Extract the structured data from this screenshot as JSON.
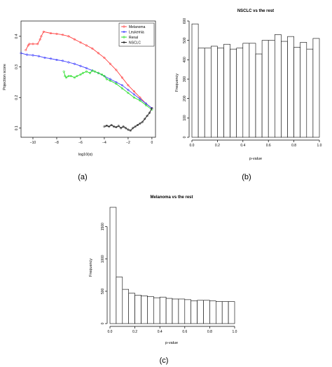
{
  "chart_data": [
    {
      "type": "line",
      "panel_label": "(a)",
      "title": "",
      "xlabel": "log10(α)",
      "ylabel": "Pojection score",
      "xlim": [
        -11,
        0.3
      ],
      "ylim": [
        0.07,
        0.45
      ],
      "xticks": [
        -10,
        -8,
        -6,
        -4,
        -2,
        0
      ],
      "xtick_labels": [
        "−10",
        "−8",
        "−6",
        "−4",
        "−2",
        "0"
      ],
      "yticks": [
        0.1,
        0.2,
        0.3,
        0.4
      ],
      "ytick_labels": [
        "0.1",
        "0.2",
        "0.3",
        "0.4"
      ],
      "legend": "top-right",
      "series": [
        {
          "name": "Melanoma",
          "color": "#ff4040",
          "x": [
            -10.6,
            -10.4,
            -10.3,
            -10.0,
            -9.6,
            -9.4,
            -9.3,
            -9.1,
            -8.5,
            -8.0,
            -7.5,
            -7.0,
            -6.5,
            -6.0,
            -5.5,
            -5.0,
            -4.5,
            -4.0,
            -3.5,
            -3.0,
            -2.5,
            -2.0,
            -1.5,
            -1.0,
            -0.5,
            0.0
          ],
          "y": [
            0.355,
            0.37,
            0.375,
            0.375,
            0.375,
            0.39,
            0.4,
            0.415,
            0.41,
            0.408,
            0.405,
            0.4,
            0.39,
            0.38,
            0.37,
            0.36,
            0.345,
            0.33,
            0.31,
            0.29,
            0.265,
            0.24,
            0.22,
            0.2,
            0.18,
            0.165
          ]
        },
        {
          "name": "Leukemia",
          "color": "#3b3bff",
          "x": [
            -11.0,
            -10.5,
            -10.0,
            -9.5,
            -9.0,
            -8.5,
            -8.0,
            -7.5,
            -7.0,
            -6.5,
            -6.0,
            -5.5,
            -5.0,
            -4.5,
            -4.0,
            -3.5,
            -3.0,
            -2.5,
            -2.0,
            -1.5,
            -1.0,
            -0.5,
            0.0
          ],
          "y": [
            0.345,
            0.34,
            0.338,
            0.335,
            0.33,
            0.327,
            0.323,
            0.32,
            0.315,
            0.31,
            0.303,
            0.296,
            0.288,
            0.28,
            0.27,
            0.26,
            0.25,
            0.24,
            0.225,
            0.21,
            0.195,
            0.18,
            0.165
          ]
        },
        {
          "name": "Renal",
          "color": "#22dd22",
          "x": [
            -7.4,
            -7.3,
            -7.2,
            -7.0,
            -6.8,
            -6.5,
            -6.3,
            -6.0,
            -5.8,
            -5.5,
            -5.2,
            -5.0,
            -4.8,
            -4.5,
            -4.2,
            -4.0,
            -3.8,
            -3.5,
            -3.0,
            -2.5,
            -2.0,
            -1.5,
            -1.0,
            -0.5,
            0.0
          ],
          "y": [
            0.285,
            0.27,
            0.265,
            0.27,
            0.27,
            0.265,
            0.27,
            0.275,
            0.28,
            0.285,
            0.28,
            0.288,
            0.285,
            0.28,
            0.275,
            0.27,
            0.26,
            0.255,
            0.245,
            0.23,
            0.215,
            0.2,
            0.19,
            0.175,
            0.16
          ]
        },
        {
          "name": "NSCLC",
          "color": "#111111",
          "x": [
            -4.0,
            -3.8,
            -3.6,
            -3.4,
            -3.2,
            -3.0,
            -2.8,
            -2.6,
            -2.4,
            -2.2,
            -2.0,
            -1.8,
            -1.6,
            -1.4,
            -1.2,
            -1.0,
            -0.8,
            -0.6,
            -0.4,
            -0.2,
            0.0
          ],
          "y": [
            0.105,
            0.108,
            0.105,
            0.11,
            0.105,
            0.103,
            0.107,
            0.1,
            0.105,
            0.1,
            0.095,
            0.092,
            0.1,
            0.105,
            0.11,
            0.115,
            0.12,
            0.13,
            0.14,
            0.15,
            0.165
          ]
        }
      ]
    },
    {
      "type": "bar",
      "panel_label": "(b)",
      "title": "NSCLC vs the rest",
      "xlabel": "p-value",
      "ylabel": "Frequency",
      "xlim": [
        0,
        1
      ],
      "ylim": [
        0,
        600
      ],
      "xticks": [
        0,
        0.2,
        0.4,
        0.6,
        0.8,
        1.0
      ],
      "xtick_labels": [
        "0.0",
        "0.2",
        "0.4",
        "0.6",
        "0.8",
        "1.0"
      ],
      "yticks": [
        0,
        100,
        200,
        300,
        400,
        500,
        600
      ],
      "ytick_labels": [
        "0",
        "100",
        "200",
        "300",
        "400",
        "500",
        "600"
      ],
      "bin_width": 0.05,
      "values": [
        585,
        460,
        460,
        470,
        460,
        480,
        455,
        460,
        485,
        485,
        430,
        500,
        500,
        530,
        495,
        520,
        465,
        490,
        455,
        510
      ]
    },
    {
      "type": "bar",
      "panel_label": "(c)",
      "title": "Melanoma vs the rest",
      "xlabel": "p-value",
      "ylabel": "Frequency",
      "xlim": [
        0,
        1
      ],
      "ylim": [
        0,
        1800
      ],
      "xticks": [
        0,
        0.2,
        0.4,
        0.6,
        0.8,
        1.0
      ],
      "xtick_labels": [
        "0.0",
        "0.2",
        "0.4",
        "0.6",
        "0.8",
        "1.0"
      ],
      "yticks": [
        0,
        500,
        1000,
        1500
      ],
      "ytick_labels": [
        "0",
        "500",
        "1000",
        "1500"
      ],
      "bin_width": 0.05,
      "values": [
        1800,
        720,
        530,
        470,
        440,
        430,
        420,
        400,
        410,
        390,
        380,
        380,
        370,
        350,
        360,
        360,
        350,
        340,
        340,
        340
      ]
    }
  ]
}
